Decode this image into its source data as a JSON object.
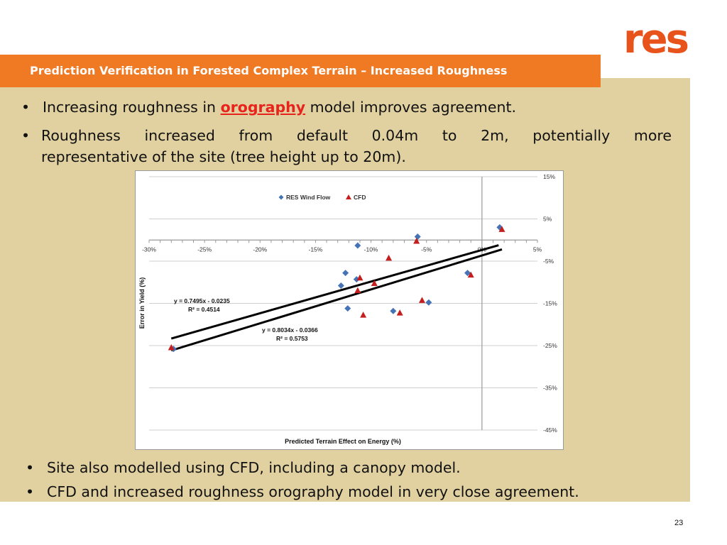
{
  "logo": {
    "text": "res",
    "color": "#e8531c"
  },
  "header": {
    "title": "Prediction Verification in Forested Complex Terrain – Increased Roughness",
    "bar_color": "#f07a24"
  },
  "bullets_top": [
    {
      "before": "Increasing roughness in ",
      "keyword": "orography",
      "after": " model improves agreement."
    },
    {
      "line1": "Roughness increased from default 0.04m to 2m, potentially more",
      "line2": "representative of the site (tree height up to 20m)."
    }
  ],
  "bullets_bottom": [
    "Site also modelled using CFD, including a canopy model.",
    "CFD and increased roughness orography model in very close agreement."
  ],
  "bullet_symbol": "•",
  "page_number": "23",
  "chart_data": {
    "type": "scatter",
    "xlabel": "Predicted Terrain Effect on Energy (%)",
    "ylabel": "Error in Yield (%)",
    "xlim": [
      -0.3,
      0.05
    ],
    "ylim": [
      -0.45,
      0.15
    ],
    "x_ticks": [
      -0.3,
      -0.25,
      -0.2,
      -0.15,
      -0.1,
      -0.05,
      0,
      0.05
    ],
    "x_tick_labels": [
      "-30%",
      "-25%",
      "-20%",
      "-15%",
      "-10%",
      "-5%",
      "0%",
      "5%"
    ],
    "y_ticks": [
      0.15,
      0.05,
      -0.05,
      -0.15,
      -0.25,
      -0.35,
      -0.45
    ],
    "y_tick_labels": [
      "15%",
      "5%",
      "-5%",
      "-15%",
      "-25%",
      "-35%",
      "-45%"
    ],
    "legend_position": "top-left",
    "series": [
      {
        "name": "RES Wind Flow",
        "marker": "diamond",
        "color": "#4573b5",
        "points": [
          [
            -0.278,
            -0.258
          ],
          [
            -0.127,
            -0.108
          ],
          [
            -0.123,
            -0.078
          ],
          [
            -0.121,
            -0.162
          ],
          [
            -0.113,
            -0.093
          ],
          [
            -0.112,
            -0.013
          ],
          [
            -0.08,
            -0.168
          ],
          [
            -0.058,
            0.008
          ],
          [
            -0.048,
            -0.148
          ],
          [
            -0.013,
            -0.078
          ],
          [
            0.016,
            0.03
          ]
        ]
      },
      {
        "name": "CFD",
        "marker": "triangle",
        "color": "#c41e1e",
        "points": [
          [
            -0.28,
            -0.255
          ],
          [
            -0.112,
            -0.12
          ],
          [
            -0.11,
            -0.09
          ],
          [
            -0.107,
            -0.178
          ],
          [
            -0.097,
            -0.103
          ],
          [
            -0.084,
            -0.043
          ],
          [
            -0.074,
            -0.173
          ],
          [
            -0.059,
            -0.003
          ],
          [
            -0.054,
            -0.143
          ],
          [
            -0.01,
            -0.083
          ],
          [
            0.018,
            0.025
          ]
        ]
      }
    ],
    "trendlines": [
      {
        "slope": 0.7495,
        "intercept": -0.0235,
        "x_range": [
          -0.28,
          0.015
        ],
        "equation": "y = 0.7495x - 0.0235",
        "r2": "R² = 0.4514"
      },
      {
        "slope": 0.8034,
        "intercept": -0.0366,
        "x_range": [
          -0.28,
          0.018
        ],
        "equation": "y = 0.8034x - 0.0366",
        "r2": "R² = 0.5753"
      }
    ]
  }
}
